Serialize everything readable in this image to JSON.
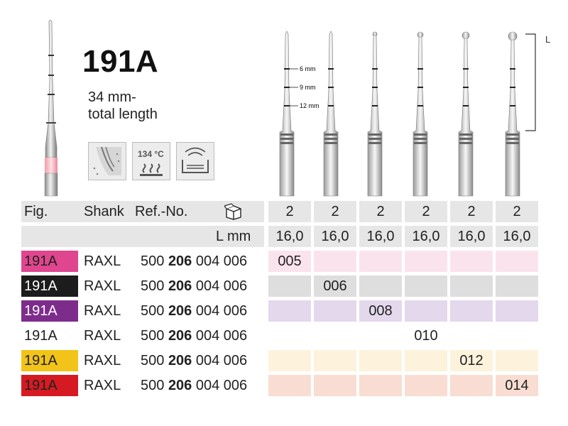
{
  "product": {
    "title": "191A",
    "length_line1": "34 mm-",
    "length_line2": "total length",
    "temperature_label": "134 °C",
    "icons": [
      "tooth-cavity-icon",
      "sterilizable-134c-icon",
      "ultrasonic-bath-icon"
    ]
  },
  "diagram": {
    "marks": [
      "6 mm",
      "9 mm",
      "12 mm"
    ],
    "length_label": "L"
  },
  "table": {
    "headers": {
      "fig": "Fig.",
      "shank": "Shank",
      "ref": "Ref.-No.",
      "package_icon": "package-icon",
      "lmm": "L mm"
    },
    "pack_qty": [
      "2",
      "2",
      "2",
      "2",
      "2",
      "2"
    ],
    "lengths": [
      "16,0",
      "16,0",
      "16,0",
      "16,0",
      "16,0",
      "16,0"
    ],
    "rows": [
      {
        "fig": "191A",
        "shank": "RAXL",
        "ref_a": "500",
        "ref_b": "206",
        "ref_c": "004 006",
        "size": "005",
        "size_col": 0,
        "swatch": "#e0458f",
        "swatch_text": "#222222",
        "tint": "#fbe3ee"
      },
      {
        "fig": "191A",
        "shank": "RAXL",
        "ref_a": "500",
        "ref_b": "206",
        "ref_c": "004 006",
        "size": "006",
        "size_col": 1,
        "swatch": "#1c1c1c",
        "swatch_text": "#ffffff",
        "tint": "#dedede"
      },
      {
        "fig": "191A",
        "shank": "RAXL",
        "ref_a": "500",
        "ref_b": "206",
        "ref_c": "004 006",
        "size": "008",
        "size_col": 2,
        "swatch": "#7e2c8c",
        "swatch_text": "#ffffff",
        "tint": "#e4d8ed"
      },
      {
        "fig": "191A",
        "shank": "RAXL",
        "ref_a": "500",
        "ref_b": "206",
        "ref_c": "004 006",
        "size": "010",
        "size_col": 3,
        "swatch": "#ffffff",
        "swatch_text": "#222222",
        "tint": "#ffffff"
      },
      {
        "fig": "191A",
        "shank": "RAXL",
        "ref_a": "500",
        "ref_b": "206",
        "ref_c": "004 006",
        "size": "012",
        "size_col": 4,
        "swatch": "#f2c318",
        "swatch_text": "#222222",
        "tint": "#fdf2dc"
      },
      {
        "fig": "191A",
        "shank": "RAXL",
        "ref_a": "500",
        "ref_b": "206",
        "ref_c": "004 006",
        "size": "014",
        "size_col": 5,
        "swatch": "#d51a22",
        "swatch_text": "#222222",
        "tint": "#f9ddd2"
      }
    ]
  }
}
